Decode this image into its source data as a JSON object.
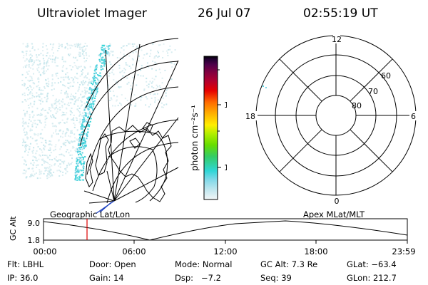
{
  "header": {
    "title": "Ultraviolet Imager",
    "date": "26 Jul 07",
    "time": "02:55:19 UT"
  },
  "colorbar": {
    "unit_label": "photon cm⁻²s⁻¹",
    "ticks": [
      "100",
      "10"
    ],
    "colors": [
      "#f2f6f7",
      "#bfe6ee",
      "#7fd8e8",
      "#2fd6d6",
      "#33cc66",
      "#66dd00",
      "#b3ee00",
      "#ffee00",
      "#ffb000",
      "#ff6a00",
      "#e60000",
      "#b00030",
      "#800040",
      "#50004a",
      "#200030",
      "#000000"
    ]
  },
  "polar_plot": {
    "labels": {
      "top": "12",
      "bottom": "0",
      "left": "18",
      "right": "6"
    },
    "latitude_labels": [
      "60",
      "70",
      "80"
    ]
  },
  "timeline": {
    "left_caption": "Geographic Lat/Lon",
    "right_caption": "Apex MLat/MLT",
    "ylabel": "GC Alt",
    "y_ticks": [
      "9.0",
      "1.8"
    ],
    "x_ticks": [
      "00:00",
      "06:00",
      "12:00",
      "18:00",
      "23:59"
    ],
    "marker_color": "#dd0000"
  },
  "info": {
    "row1": {
      "filter": "Flt: LBHL",
      "door": "Door: Open",
      "mode": "Mode: Normal",
      "gc_alt": "GC Alt: 7.3 Re",
      "glat": "GLat: −63.4"
    },
    "row2": {
      "ip": "IP: 36.0",
      "gain": "Gain: 14",
      "dsp": "Dsp:   −7.2",
      "seq": "Seq: 39",
      "glon": "GLon: 212.7"
    }
  }
}
